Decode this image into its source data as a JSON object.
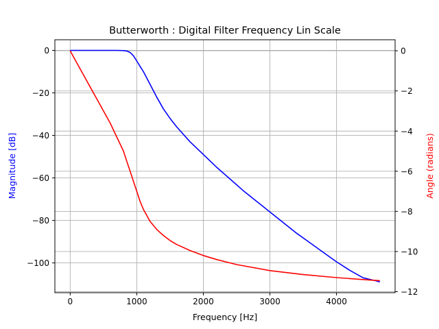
{
  "chart_data": {
    "type": "line",
    "title": "Butterworth : Digital Filter Frequency Lin Scale",
    "xlabel": "Frequency [Hz]",
    "ylabel_left": "Magnitude [dB]",
    "ylabel_right": "Angle (radians)",
    "xlim": [
      -230,
      4880
    ],
    "ylim_left": [
      -114,
      5
    ],
    "ylim_right": [
      -12.05,
      0.55
    ],
    "xticks": [
      0,
      1000,
      2000,
      3000,
      4000
    ],
    "yticks_left": [
      0,
      -20,
      -40,
      -60,
      -80,
      -100
    ],
    "yticks_right": [
      0,
      -2,
      -4,
      -6,
      -8,
      -10,
      -12
    ],
    "tick_labels": {
      "x": [
        "0",
        "1000",
        "2000",
        "3000",
        "4000"
      ],
      "left": [
        "0",
        "−20",
        "−40",
        "−60",
        "−80",
        "−100"
      ],
      "right": [
        "0",
        "−2",
        "−4",
        "−6",
        "−8",
        "−10",
        "−12"
      ]
    },
    "grid": true,
    "colors": {
      "magnitude": "#0000ff",
      "angle": "#ff0000",
      "grid": "#b0b0b0",
      "left_label": "#0000ff",
      "right_label": "#ff0000"
    },
    "series": [
      {
        "axis": "left",
        "color": "#0000ff",
        "x": [
          0,
          200,
          400,
          600,
          700,
          800,
          850,
          900,
          950,
          1000,
          1050,
          1100,
          1200,
          1300,
          1400,
          1500,
          1600,
          1800,
          2000,
          2200,
          2400,
          2600,
          2800,
          3000,
          3200,
          3400,
          3600,
          3800,
          4000,
          4200,
          4400,
          4600,
          4650
        ],
        "values": [
          0,
          0,
          0,
          0,
          0,
          -0.1,
          -0.3,
          -1,
          -2.5,
          -5,
          -7.5,
          -10,
          -16,
          -22,
          -27.5,
          -32,
          -36,
          -43,
          -49,
          -55,
          -60.5,
          -66,
          -71,
          -76,
          -81,
          -86,
          -90.5,
          -95,
          -99.5,
          -103.5,
          -107,
          -108.5,
          -109
        ]
      },
      {
        "axis": "right",
        "color": "#ff0000",
        "x": [
          0,
          100,
          200,
          300,
          400,
          500,
          600,
          700,
          800,
          850,
          900,
          950,
          1000,
          1050,
          1100,
          1200,
          1300,
          1400,
          1500,
          1600,
          1800,
          2000,
          2200,
          2500,
          3000,
          3500,
          4000,
          4500,
          4650
        ],
        "values": [
          0,
          -0.6,
          -1.2,
          -1.8,
          -2.4,
          -3.0,
          -3.6,
          -4.3,
          -5.0,
          -5.5,
          -6.0,
          -6.5,
          -7.0,
          -7.5,
          -7.9,
          -8.5,
          -8.9,
          -9.2,
          -9.45,
          -9.65,
          -9.95,
          -10.2,
          -10.4,
          -10.65,
          -10.95,
          -11.15,
          -11.3,
          -11.42,
          -11.45
        ]
      }
    ]
  }
}
